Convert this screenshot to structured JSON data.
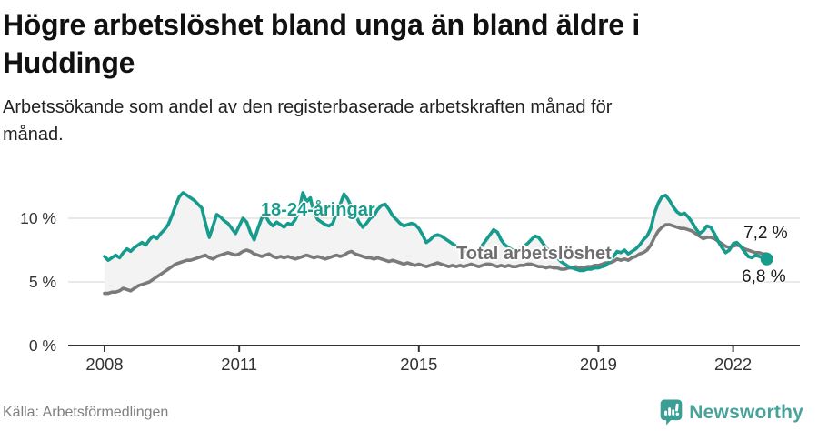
{
  "header": {
    "title_lines": [
      "Högre arbetslöshet bland unga än bland äldre i",
      "Huddinge"
    ],
    "subtitle_lines": [
      "Arbetssökande som andel av den registerbaserade arbetskraften månad för",
      "månad."
    ]
  },
  "chart_data": {
    "type": "line",
    "unit": "%",
    "frequency": "monthly",
    "start": {
      "year": 2008,
      "month": 1
    },
    "end": {
      "year": 2022,
      "month": 10
    },
    "x_ticks": [
      2008,
      2011,
      2015,
      2019,
      2022
    ],
    "y_ticks": [
      {
        "value": 0,
        "label": "0 %"
      },
      {
        "value": 5,
        "label": "5 %"
      },
      {
        "value": 10,
        "label": "10 %"
      }
    ],
    "ylim": [
      0,
      13.5
    ],
    "grid": true,
    "legend_position": "inline-labels",
    "band_fill_between_series": true,
    "series": [
      {
        "name": "18-24-åringar",
        "color": "#169b8c",
        "end_value": 6.8,
        "end_label": "6,8 %",
        "end_dot": true,
        "values": [
          7.0,
          6.7,
          6.9,
          7.1,
          6.9,
          7.3,
          7.6,
          7.4,
          7.7,
          7.9,
          8.1,
          7.9,
          8.3,
          8.6,
          8.4,
          8.8,
          9.1,
          9.5,
          10.2,
          11.0,
          11.7,
          12.0,
          11.8,
          11.6,
          11.4,
          11.1,
          10.8,
          9.6,
          8.5,
          9.4,
          10.3,
          10.1,
          9.8,
          9.6,
          9.2,
          8.8,
          9.4,
          10.0,
          9.7,
          8.9,
          8.3,
          9.2,
          10.0,
          10.2,
          9.7,
          9.4,
          9.7,
          9.5,
          9.3,
          9.6,
          9.5,
          9.9,
          10.6,
          12.0,
          11.3,
          11.6,
          10.4,
          9.9,
          9.7,
          9.5,
          9.4,
          9.6,
          10.4,
          11.1,
          11.9,
          11.5,
          10.9,
          10.3,
          9.7,
          9.3,
          9.6,
          10.0,
          10.2,
          10.7,
          11.0,
          11.1,
          10.7,
          10.2,
          9.9,
          9.6,
          9.4,
          9.5,
          9.6,
          9.5,
          9.2,
          8.7,
          8.1,
          8.3,
          8.6,
          8.7,
          8.6,
          8.4,
          8.2,
          8.0,
          7.8,
          7.6,
          7.4,
          7.2,
          7.0,
          7.2,
          7.5,
          7.9,
          8.3,
          8.7,
          9.1,
          8.9,
          8.3,
          7.9,
          7.7,
          7.5,
          7.4,
          7.6,
          7.8,
          8.0,
          8.3,
          8.6,
          8.5,
          8.1,
          7.7,
          7.4,
          7.1,
          6.9,
          6.6,
          6.4,
          6.2,
          6.1,
          6.0,
          5.9,
          5.9,
          6.0,
          6.0,
          6.1,
          6.1,
          6.2,
          6.3,
          6.6,
          7.0,
          7.4,
          7.3,
          7.5,
          7.2,
          7.4,
          7.6,
          7.9,
          8.3,
          8.6,
          9.2,
          10.4,
          11.2,
          11.7,
          11.8,
          11.4,
          10.9,
          10.5,
          10.3,
          10.4,
          10.1,
          9.7,
          9.2,
          8.8,
          9.0,
          9.4,
          9.3,
          8.8,
          8.2,
          7.7,
          7.3,
          7.5,
          8.0,
          8.1,
          7.8,
          7.4,
          7.0,
          6.9,
          7.1,
          7.0,
          6.9,
          6.8
        ]
      },
      {
        "name": "Total arbetslöshet",
        "color": "#7a7a7a",
        "end_value": 7.2,
        "end_label": "7,2 %",
        "end_dot": false,
        "values": [
          4.1,
          4.1,
          4.2,
          4.2,
          4.3,
          4.5,
          4.4,
          4.3,
          4.5,
          4.7,
          4.8,
          4.9,
          5.0,
          5.2,
          5.4,
          5.6,
          5.8,
          6.0,
          6.2,
          6.4,
          6.5,
          6.6,
          6.7,
          6.7,
          6.8,
          6.9,
          7.0,
          7.1,
          6.9,
          6.8,
          7.0,
          7.1,
          7.2,
          7.3,
          7.2,
          7.1,
          7.2,
          7.4,
          7.5,
          7.4,
          7.2,
          7.1,
          7.0,
          7.1,
          7.2,
          7.0,
          6.9,
          7.0,
          6.9,
          7.0,
          6.9,
          6.8,
          6.9,
          7.0,
          7.1,
          7.0,
          6.9,
          7.0,
          6.9,
          6.8,
          6.9,
          7.0,
          7.1,
          7.0,
          7.1,
          7.3,
          7.4,
          7.2,
          7.1,
          7.0,
          6.9,
          6.9,
          6.8,
          6.9,
          6.8,
          6.7,
          6.6,
          6.7,
          6.6,
          6.5,
          6.4,
          6.5,
          6.4,
          6.3,
          6.4,
          6.3,
          6.2,
          6.3,
          6.4,
          6.5,
          6.4,
          6.3,
          6.2,
          6.3,
          6.2,
          6.3,
          6.2,
          6.3,
          6.4,
          6.3,
          6.2,
          6.3,
          6.4,
          6.4,
          6.3,
          6.2,
          6.3,
          6.2,
          6.3,
          6.2,
          6.2,
          6.3,
          6.3,
          6.4,
          6.4,
          6.3,
          6.2,
          6.2,
          6.1,
          6.2,
          6.1,
          6.1,
          6.0,
          6.0,
          6.1,
          6.1,
          6.2,
          6.1,
          6.1,
          6.2,
          6.2,
          6.3,
          6.3,
          6.4,
          6.5,
          6.5,
          6.6,
          6.8,
          6.7,
          6.8,
          6.7,
          6.9,
          7.0,
          7.2,
          7.3,
          7.5,
          7.9,
          8.5,
          9.0,
          9.3,
          9.5,
          9.5,
          9.4,
          9.3,
          9.2,
          9.2,
          9.1,
          9.0,
          8.8,
          8.6,
          8.4,
          8.5,
          8.5,
          8.4,
          8.2,
          8.0,
          7.8,
          7.7,
          7.8,
          7.9,
          7.8,
          7.6,
          7.5,
          7.4,
          7.3,
          7.3,
          7.2,
          7.2
        ]
      }
    ],
    "colors": {
      "grid": "#dcdcdc",
      "axis": "#333333",
      "band_fill": "#f3f3f3",
      "tick_text": "#333333"
    }
  },
  "footer": {
    "source": "Källa: Arbetsförmedlingen",
    "brand": "Newsworthy",
    "brand_color": "#47a39a",
    "logo_icon": "bar-chart-speech-bubble"
  }
}
